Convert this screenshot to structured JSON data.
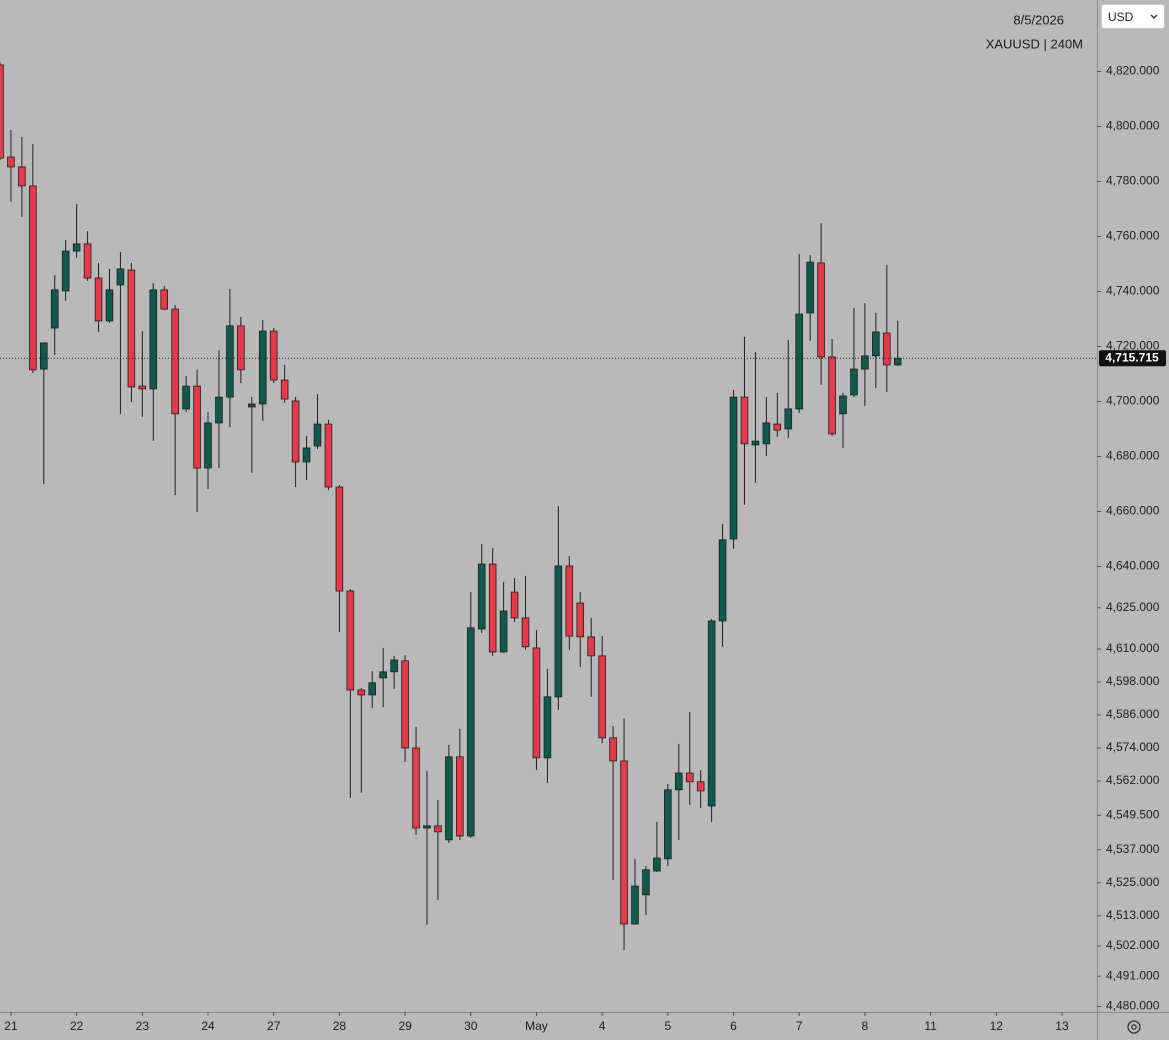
{
  "chart_data": {
    "type": "candlestick",
    "date": "8/5/2026",
    "title": "XAUUSD | 240M",
    "currency": "USD",
    "up_color": "#0f5a4a",
    "down_color": "#e63a48",
    "wick_color": "#1e1e1e",
    "open": [
      4822.4,
      4788.9,
      4785.3,
      4778.4,
      4711.8,
      4726.7,
      4740.2,
      4754.7,
      4757.3,
      4744.9,
      4729.3,
      4742.4,
      4747.8,
      4705.6,
      4704.6,
      4740.6,
      4733.6,
      4697.3,
      4705.6,
      4675.8,
      4692.2,
      4701.6,
      4727.5,
      4698.0,
      4699.1,
      4725.6,
      4707.8,
      4700.2,
      4678.0,
      4683.8,
      4691.8,
      4668.9,
      4631.1,
      4595.1,
      4593.3,
      4599.5,
      4601.7,
      4605.7,
      4574.0,
      4544.9,
      4545.7,
      4540.6,
      4570.8,
      4542.0,
      4617.3,
      4640.9,
      4608.9,
      4630.7,
      4621.3,
      4610.4,
      4570.4,
      4592.6,
      4640.2,
      4626.7,
      4614.4,
      4607.5,
      4577.7,
      4569.3,
      4510.0,
      4520.6,
      4529.3,
      4533.7,
      4558.8,
      4564.9,
      4561.7,
      4552.9,
      4620.2,
      4650.0,
      4701.6,
      4684.2,
      4684.6,
      4691.8,
      4690.0,
      4697.3,
      4732.2,
      4750.4,
      4716.2,
      4695.5,
      4702.4,
      4711.8,
      4716.6,
      4724.9,
      4713.3
    ],
    "high": [
      4823.5,
      4798.7,
      4796.2,
      4793.6,
      4721.3,
      4746.0,
      4758.7,
      4771.8,
      4762.0,
      4750.4,
      4748.2,
      4754.4,
      4750.4,
      4725.6,
      4743.1,
      4742.0,
      4735.1,
      4709.3,
      4711.5,
      4696.2,
      4718.7,
      4740.9,
      4730.7,
      4701.6,
      4729.6,
      4726.7,
      4713.3,
      4701.6,
      4687.5,
      4702.7,
      4693.3,
      4669.6,
      4631.8,
      4595.8,
      4602.0,
      4610.4,
      4607.5,
      4607.8,
      4581.7,
      4565.7,
      4555.1,
      4575.1,
      4580.9,
      4630.7,
      4648.2,
      4646.7,
      4634.4,
      4635.8,
      4636.6,
      4616.9,
      4602.8,
      4662.0,
      4643.8,
      4630.7,
      4621.3,
      4614.7,
      4582.0,
      4584.9,
      4533.7,
      4531.1,
      4547.1,
      4560.9,
      4575.5,
      4587.1,
      4566.0,
      4620.9,
      4655.5,
      4704.2,
      4723.5,
      4718.0,
      4701.6,
      4703.1,
      4722.4,
      4753.6,
      4753.3,
      4764.9,
      4722.7,
      4703.1,
      4734.0,
      4735.8,
      4732.2,
      4749.6,
      4729.3
    ],
    "low": [
      4787.8,
      4772.6,
      4767.1,
      4710.4,
      4670.0,
      4716.9,
      4736.6,
      4752.2,
      4743.8,
      4725.3,
      4728.6,
      4695.5,
      4699.8,
      4694.4,
      4685.7,
      4733.3,
      4666.0,
      4696.2,
      4659.8,
      4668.2,
      4675.8,
      4690.7,
      4706.7,
      4674.0,
      4692.9,
      4706.7,
      4699.5,
      4668.9,
      4671.5,
      4682.7,
      4667.8,
      4616.2,
      4555.8,
      4557.7,
      4588.6,
      4588.9,
      4595.5,
      4568.9,
      4542.4,
      4509.7,
      4518.8,
      4539.5,
      4540.6,
      4541.3,
      4615.8,
      4607.5,
      4608.6,
      4619.8,
      4609.7,
      4566.0,
      4561.3,
      4587.8,
      4609.7,
      4603.5,
      4592.6,
      4575.8,
      4526.0,
      4500.6,
      4509.7,
      4513.3,
      4528.9,
      4531.1,
      4540.6,
      4553.3,
      4552.2,
      4547.1,
      4610.8,
      4646.4,
      4662.4,
      4670.4,
      4680.2,
      4687.1,
      4686.7,
      4695.8,
      4722.0,
      4706.0,
      4687.5,
      4683.1,
      4701.6,
      4698.4,
      4704.9,
      4703.5,
      4712.9
    ],
    "close": [
      4788.5,
      4785.3,
      4778.4,
      4711.5,
      4721.3,
      4740.6,
      4754.7,
      4757.3,
      4744.9,
      4729.3,
      4740.6,
      4748.2,
      4705.3,
      4704.6,
      4740.6,
      4733.6,
      4695.5,
      4705.6,
      4675.8,
      4692.2,
      4701.6,
      4727.5,
      4711.5,
      4699.1,
      4725.6,
      4707.8,
      4700.9,
      4678.0,
      4683.1,
      4691.8,
      4668.9,
      4631.1,
      4595.1,
      4593.3,
      4597.7,
      4601.7,
      4606.0,
      4574.0,
      4544.9,
      4545.7,
      4543.5,
      4570.8,
      4542.0,
      4617.7,
      4640.9,
      4608.9,
      4623.8,
      4621.3,
      4610.8,
      4570.4,
      4592.6,
      4640.2,
      4614.7,
      4614.4,
      4607.5,
      4577.7,
      4569.3,
      4510.0,
      4523.8,
      4529.7,
      4534.0,
      4558.8,
      4564.9,
      4561.7,
      4558.4,
      4620.2,
      4649.7,
      4701.6,
      4684.6,
      4685.6,
      4692.2,
      4689.6,
      4697.3,
      4731.8,
      4750.7,
      4716.2,
      4688.2,
      4702.0,
      4711.8,
      4716.6,
      4725.3,
      4713.3,
      4715.715
    ],
    "price_line": {
      "value": 4715.715,
      "label": "4,715.715"
    },
    "xlim": [
      0,
      100.2
    ],
    "xticks": [
      {
        "value": 1,
        "label": "21"
      },
      {
        "value": 7,
        "label": "22"
      },
      {
        "value": 13,
        "label": "23"
      },
      {
        "value": 19,
        "label": "24"
      },
      {
        "value": 25,
        "label": "27"
      },
      {
        "value": 31,
        "label": "28"
      },
      {
        "value": 37,
        "label": "29"
      },
      {
        "value": 43,
        "label": "30"
      },
      {
        "value": 49,
        "label": "May"
      },
      {
        "value": 55,
        "label": "4"
      },
      {
        "value": 61,
        "label": "5"
      },
      {
        "value": 67,
        "label": "6"
      },
      {
        "value": 73,
        "label": "7"
      },
      {
        "value": 79,
        "label": "8"
      },
      {
        "value": 85,
        "label": "11"
      },
      {
        "value": 91,
        "label": "12"
      },
      {
        "value": 97,
        "label": "13"
      }
    ],
    "ylim": [
      4478,
      4846
    ],
    "yticks": [
      {
        "value": 4820,
        "label": "4,820.000"
      },
      {
        "value": 4800,
        "label": "4,800.000"
      },
      {
        "value": 4780,
        "label": "4,780.000"
      },
      {
        "value": 4760,
        "label": "4,760.000"
      },
      {
        "value": 4740,
        "label": "4,740.000"
      },
      {
        "value": 4720,
        "label": "4,720.000"
      },
      {
        "value": 4700,
        "label": "4,700.000"
      },
      {
        "value": 4680,
        "label": "4,680.000"
      },
      {
        "value": 4660,
        "label": "4,660.000"
      },
      {
        "value": 4640,
        "label": "4,640.000"
      },
      {
        "value": 4625,
        "label": "4,625.000"
      },
      {
        "value": 4610,
        "label": "4,610.000"
      },
      {
        "value": 4598,
        "label": "4,598.000"
      },
      {
        "value": 4586,
        "label": "4,586.000"
      },
      {
        "value": 4574,
        "label": "4,574.000"
      },
      {
        "value": 4562,
        "label": "4,562.000"
      },
      {
        "value": 4549.5,
        "label": "4,549.500"
      },
      {
        "value": 4537,
        "label": "4,537.000"
      },
      {
        "value": 4525,
        "label": "4,525.000"
      },
      {
        "value": 4513,
        "label": "4,513.000"
      },
      {
        "value": 4502,
        "label": "4,502.000"
      },
      {
        "value": 4491,
        "label": "4,491.000"
      },
      {
        "value": 4480,
        "label": "4,480.000"
      }
    ]
  }
}
